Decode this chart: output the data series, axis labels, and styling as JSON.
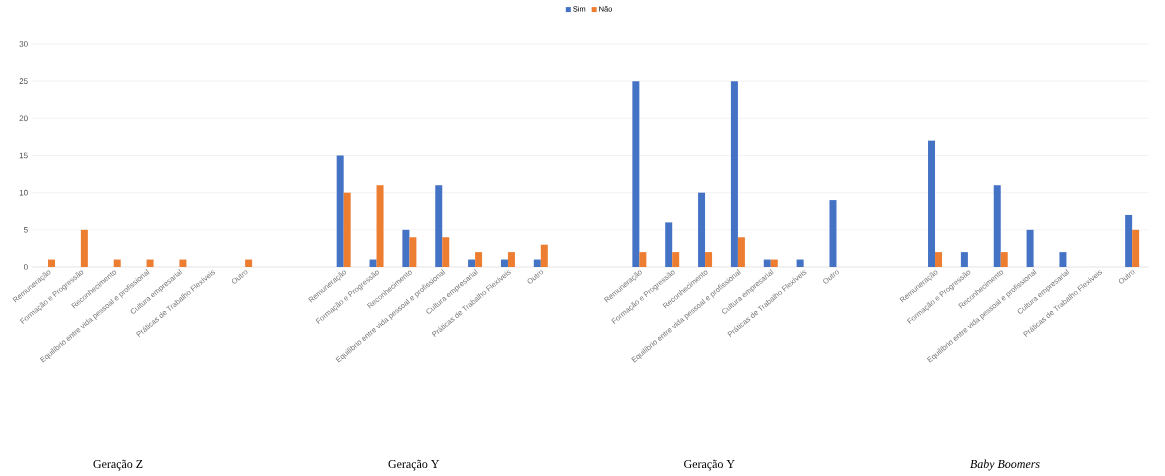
{
  "chart_data": {
    "type": "bar",
    "categories": [
      "Remuneração",
      "Formação e Progressão",
      "Reconhecimento",
      "Equilíbrio entre vida pessoal e profissional",
      "Cultura empresarial",
      "Práticas de Trabalho Flexíveis",
      "Outro",
      null,
      null,
      "Remuneração",
      "Formação e Progressão",
      "Reconhecimento",
      "Equilíbrio entre vida pessoal e profissional",
      "Cultura empresarial",
      "Práticas de Trabalho Flexíveis",
      "Outro",
      null,
      null,
      "Remuneração",
      "Formação e Progressão",
      "Reconhecimento",
      "Equilíbrio entre vida pessoal e profissional",
      "Cultura empresarial",
      "Práticas de Trabalho Flexíveis",
      "Outro",
      null,
      null,
      "Remuneração",
      "Formação e Progressão",
      "Reconhecimento",
      "Equilíbrio entre vida pessoal e profissional",
      "Cultura empresarial",
      "Práticas de Trabalho Flexíveis",
      "Outro"
    ],
    "series": [
      {
        "name": "Sim",
        "color": "#4472c4",
        "values": [
          0,
          0,
          0,
          0,
          0,
          0,
          0,
          null,
          null,
          15,
          1,
          5,
          11,
          1,
          1,
          1,
          null,
          null,
          25,
          6,
          10,
          25,
          1,
          1,
          9,
          null,
          null,
          17,
          2,
          11,
          5,
          2,
          0,
          7
        ]
      },
      {
        "name": "Não",
        "color": "#ed7d31",
        "values": [
          1,
          5,
          1,
          1,
          1,
          0,
          1,
          null,
          null,
          10,
          11,
          4,
          4,
          2,
          2,
          3,
          null,
          null,
          2,
          2,
          2,
          4,
          1,
          0,
          0,
          null,
          null,
          2,
          0,
          2,
          0,
          0,
          0,
          5
        ]
      }
    ],
    "ylim": [
      0,
      30
    ],
    "yticks": [
      0,
      5,
      10,
      15,
      20,
      25,
      30
    ],
    "grid": "y",
    "legend": "top",
    "annotations": [
      "Geração Z",
      "Geração Y",
      "Geração Y",
      "Baby Boomers"
    ]
  }
}
